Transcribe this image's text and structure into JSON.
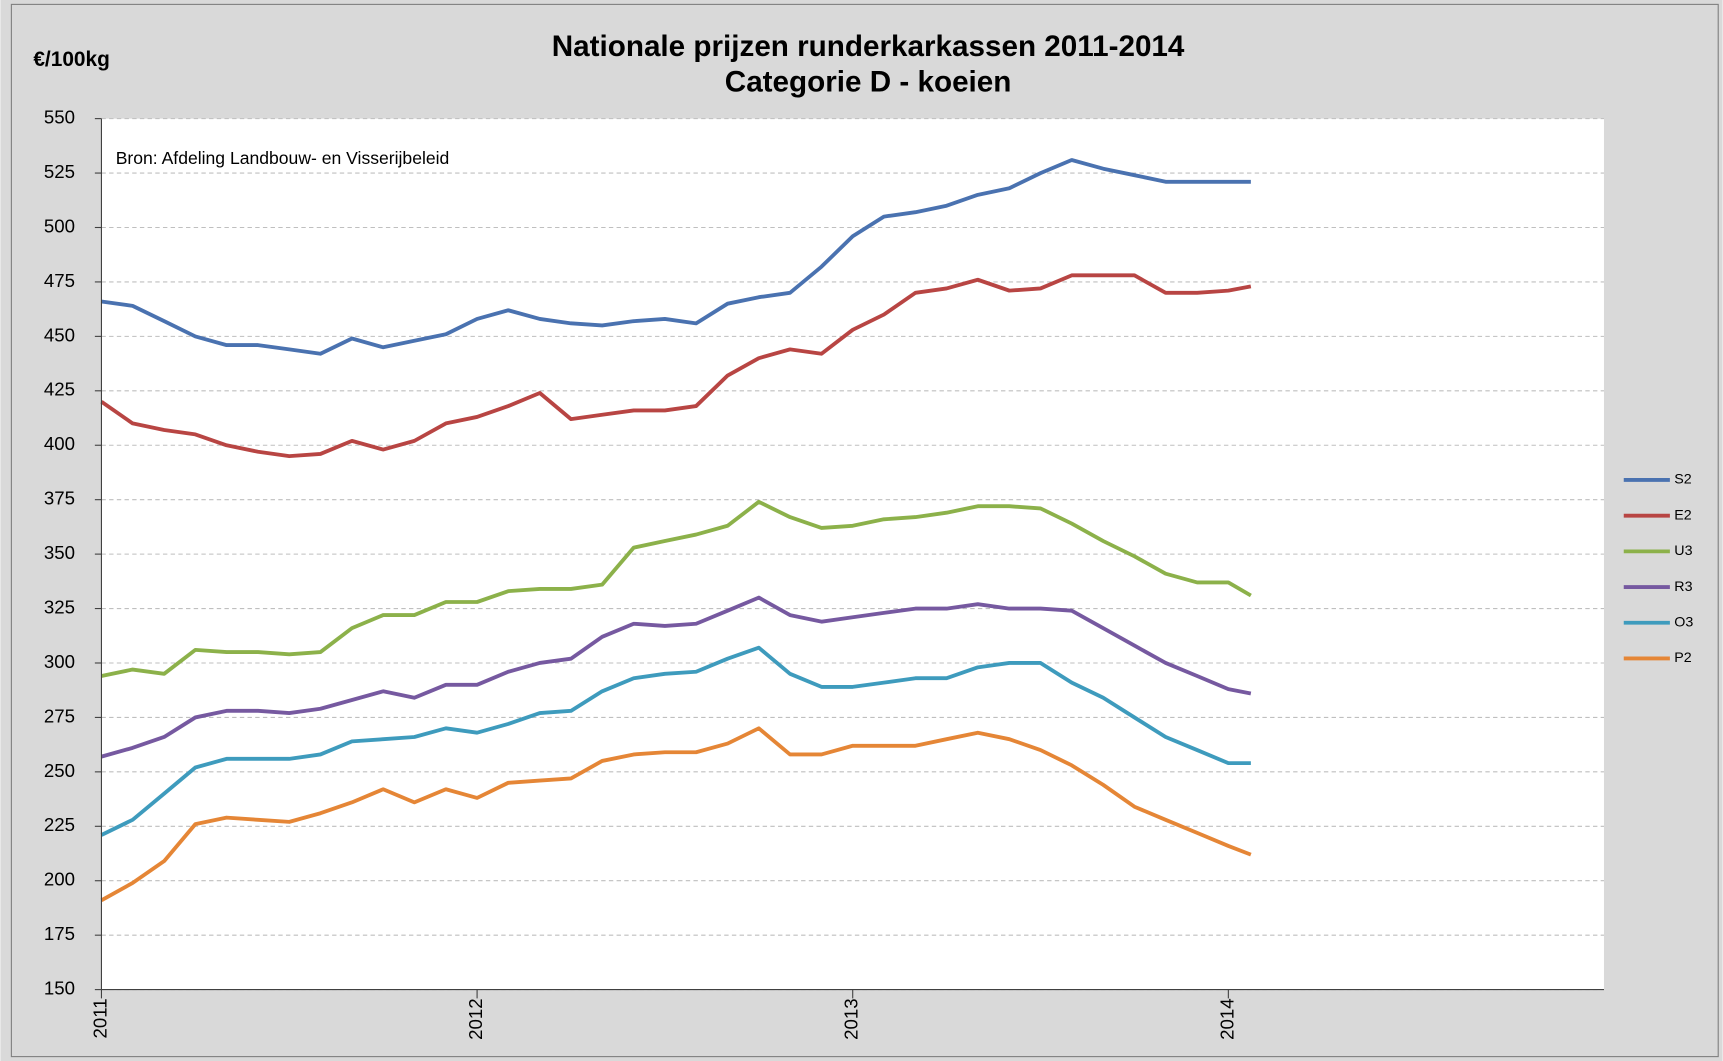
{
  "chart_data": {
    "type": "line",
    "title": "Nationale prijzen runderkarkassen 2011-2014",
    "subtitle": "Categorie D - koeien",
    "y_label": "€/100kg",
    "annotation": "Bron: Afdeling Landbouw- en Visserijbeleid",
    "x": [
      2011,
      2011.083,
      2011.167,
      2011.25,
      2011.333,
      2011.417,
      2011.5,
      2011.583,
      2011.667,
      2011.75,
      2011.833,
      2011.917,
      2012,
      2012.083,
      2012.167,
      2012.25,
      2012.333,
      2012.417,
      2012.5,
      2012.583,
      2012.667,
      2012.75,
      2012.833,
      2012.917,
      2013,
      2013.083,
      2013.167,
      2013.25,
      2013.333,
      2013.417,
      2013.5,
      2013.583,
      2013.667,
      2013.75,
      2013.833,
      2013.917,
      2014,
      2014.06
    ],
    "xlim": [
      2011,
      2015
    ],
    "xticks": [
      2011,
      2012,
      2013,
      2014
    ],
    "ylim": [
      150,
      550
    ],
    "yticks": [
      150,
      175,
      200,
      225,
      250,
      275,
      300,
      325,
      350,
      375,
      400,
      425,
      450,
      475,
      500,
      525,
      550
    ],
    "grid": true,
    "legend": "right",
    "series": [
      {
        "name": "S2",
        "color": "#4a72b0",
        "values": [
          466,
          464,
          457,
          450,
          446,
          446,
          444,
          442,
          449,
          445,
          448,
          451,
          458,
          462,
          458,
          456,
          455,
          457,
          458,
          456,
          465,
          468,
          470,
          482,
          496,
          505,
          507,
          510,
          515,
          518,
          525,
          531,
          527,
          524,
          521,
          521,
          521,
          521
        ]
      },
      {
        "name": "E2",
        "color": "#b84543",
        "values": [
          420,
          410,
          407,
          405,
          400,
          397,
          395,
          396,
          402,
          398,
          402,
          410,
          413,
          418,
          424,
          412,
          414,
          416,
          416,
          418,
          432,
          440,
          444,
          442,
          453,
          460,
          470,
          472,
          476,
          471,
          472,
          478,
          478,
          478,
          470,
          470,
          471,
          473
        ]
      },
      {
        "name": "U3",
        "color": "#8cb14a",
        "values": [
          294,
          297,
          295,
          306,
          305,
          305,
          304,
          305,
          316,
          322,
          322,
          328,
          328,
          333,
          334,
          334,
          336,
          353,
          356,
          359,
          363,
          374,
          367,
          362,
          363,
          366,
          367,
          369,
          372,
          372,
          371,
          364,
          356,
          349,
          341,
          337,
          337,
          331
        ]
      },
      {
        "name": "R3",
        "color": "#7659a0",
        "values": [
          257,
          261,
          266,
          275,
          278,
          278,
          277,
          279,
          283,
          287,
          284,
          290,
          290,
          296,
          300,
          302,
          312,
          318,
          317,
          318,
          324,
          330,
          322,
          319,
          321,
          323,
          325,
          325,
          327,
          325,
          325,
          324,
          316,
          308,
          300,
          294,
          288,
          286
        ]
      },
      {
        "name": "O3",
        "color": "#3e9bbd",
        "values": [
          221,
          228,
          240,
          252,
          256,
          256,
          256,
          258,
          264,
          265,
          266,
          270,
          268,
          272,
          277,
          278,
          287,
          293,
          295,
          296,
          302,
          307,
          295,
          289,
          289,
          291,
          293,
          293,
          298,
          300,
          300,
          291,
          284,
          275,
          266,
          260,
          254,
          254
        ]
      },
      {
        "name": "P2",
        "color": "#e58636",
        "values": [
          191,
          199,
          209,
          226,
          229,
          228,
          227,
          231,
          236,
          242,
          236,
          242,
          238,
          245,
          246,
          247,
          255,
          258,
          259,
          259,
          263,
          270,
          258,
          258,
          262,
          262,
          262,
          265,
          268,
          265,
          260,
          253,
          244,
          234,
          228,
          222,
          216,
          212
        ]
      }
    ]
  }
}
